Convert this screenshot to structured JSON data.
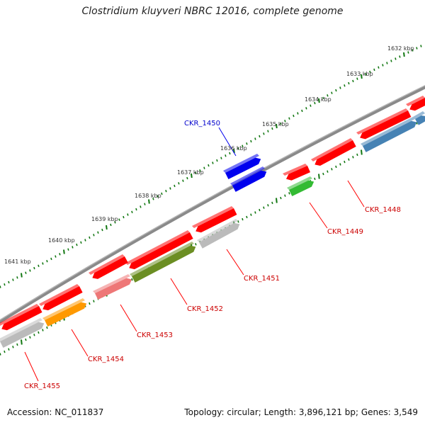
{
  "title": "Clostridium kluyveri NBRC 12016, complete genome",
  "footer": {
    "accession": "Accession: NC_011837",
    "summary": "Topology: circular; Length: 3,896,121 bp; Genes: 3,549"
  },
  "kbp_labels": [
    "1632 kbp",
    "1633 kbp",
    "1634 kbp",
    "1635 kbp",
    "1636 kbp",
    "1637 kbp",
    "1638 kbp",
    "1639 kbp",
    "1640 kbp",
    "1641 kbp"
  ],
  "genes": [
    {
      "label": "CKR_1448",
      "color": "#cc0000"
    },
    {
      "label": "CKR_1449",
      "color": "#cc0000"
    },
    {
      "label": "CKR_1450",
      "color": "#0000cc"
    },
    {
      "label": "CKR_1451",
      "color": "#cc0000"
    },
    {
      "label": "CKR_1452",
      "color": "#cc0000"
    },
    {
      "label": "CKR_1453",
      "color": "#cc0000"
    },
    {
      "label": "CKR_1454",
      "color": "#cc0000"
    },
    {
      "label": "CKR_1455",
      "color": "#cc0000"
    }
  ],
  "colors": {
    "backbone": "#777777",
    "red": "#ff0000",
    "blue": "#0000ee",
    "green": "#33bb33",
    "grey": "#bbbbbb",
    "olive": "#6b8e23",
    "pink": "#ee7777",
    "orange": "#ff9900",
    "steelblue": "#4682b4",
    "tick": "#117711"
  }
}
